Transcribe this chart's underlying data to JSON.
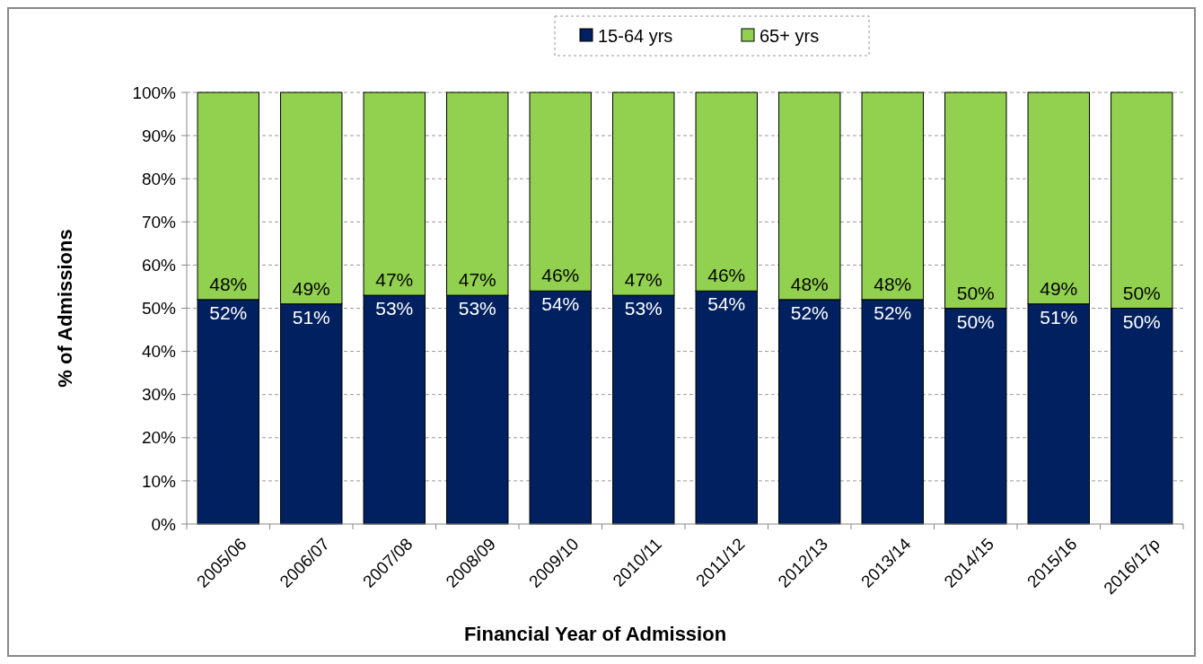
{
  "chart_data": {
    "type": "bar",
    "stacked": true,
    "xlabel": "Financial Year of Admission",
    "ylabel": "% of Admissions",
    "categories": [
      "2005/06",
      "2006/07",
      "2007/08",
      "2008/09",
      "2009/10",
      "2010/11",
      "2011/12",
      "2012/13",
      "2013/14",
      "2014/15",
      "2015/16",
      "2016/17p"
    ],
    "series": [
      {
        "name": "15-64 yrs",
        "color": "#012060",
        "values": [
          52,
          51,
          53,
          53,
          54,
          53,
          54,
          52,
          52,
          50,
          51,
          50
        ],
        "value_labels": [
          "52%",
          "51%",
          "53%",
          "53%",
          "54%",
          "53%",
          "54%",
          "52%",
          "52%",
          "50%",
          "51%",
          "50%"
        ]
      },
      {
        "name": "65+ yrs",
        "color": "#92d050",
        "values": [
          48,
          49,
          47,
          47,
          46,
          47,
          46,
          48,
          48,
          50,
          49,
          50
        ],
        "value_labels": [
          "48%",
          "49%",
          "47%",
          "47%",
          "46%",
          "47%",
          "46%",
          "48%",
          "48%",
          "50%",
          "49%",
          "50%"
        ]
      }
    ],
    "ylim": [
      0,
      100
    ],
    "yticks": [
      {
        "value": 0,
        "label": "0%"
      },
      {
        "value": 10,
        "label": "10%"
      },
      {
        "value": 20,
        "label": "20%"
      },
      {
        "value": 30,
        "label": "30%"
      },
      {
        "value": 40,
        "label": "40%"
      },
      {
        "value": 50,
        "label": "50%"
      },
      {
        "value": 60,
        "label": "60%"
      },
      {
        "value": 70,
        "label": "70%"
      },
      {
        "value": 80,
        "label": "80%"
      },
      {
        "value": 90,
        "label": "90%"
      },
      {
        "value": 100,
        "label": "100%"
      }
    ],
    "grid": "y",
    "legend": "top"
  }
}
